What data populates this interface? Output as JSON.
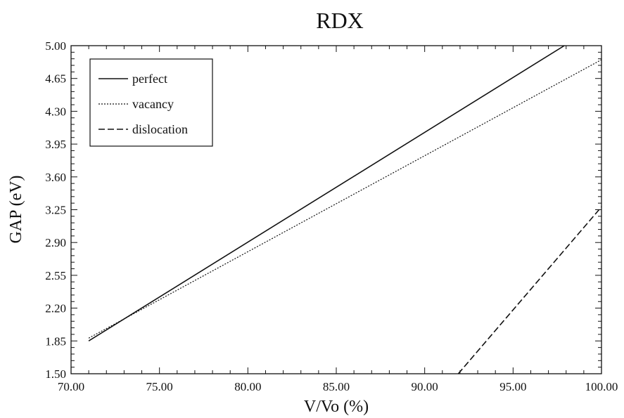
{
  "chart_data": {
    "type": "line",
    "title": "RDX",
    "xlabel": "V/Vo (%)",
    "ylabel": "GAP (eV)",
    "xlim": [
      70,
      100
    ],
    "ylim": [
      1.5,
      5.0
    ],
    "x_ticks": [
      "70.00",
      "75.00",
      "80.00",
      "85.00",
      "90.00",
      "95.00",
      "100.00"
    ],
    "y_ticks": [
      "1.50",
      "1.85",
      "2.20",
      "2.55",
      "2.90",
      "3.25",
      "3.60",
      "3.95",
      "4.30",
      "4.65",
      "5.00"
    ],
    "grid": false,
    "legend_position": "top-left",
    "series": [
      {
        "name": "perfect",
        "style": "solid",
        "x": [
          71.0,
          97.9
        ],
        "y": [
          1.85,
          5.0
        ]
      },
      {
        "name": "vacancy",
        "style": "dotted",
        "x": [
          71.0,
          100.0
        ],
        "y": [
          1.88,
          4.85
        ]
      },
      {
        "name": "dislocation",
        "style": "dashed",
        "x": [
          91.9,
          100.0
        ],
        "y": [
          1.5,
          3.28
        ]
      }
    ]
  }
}
